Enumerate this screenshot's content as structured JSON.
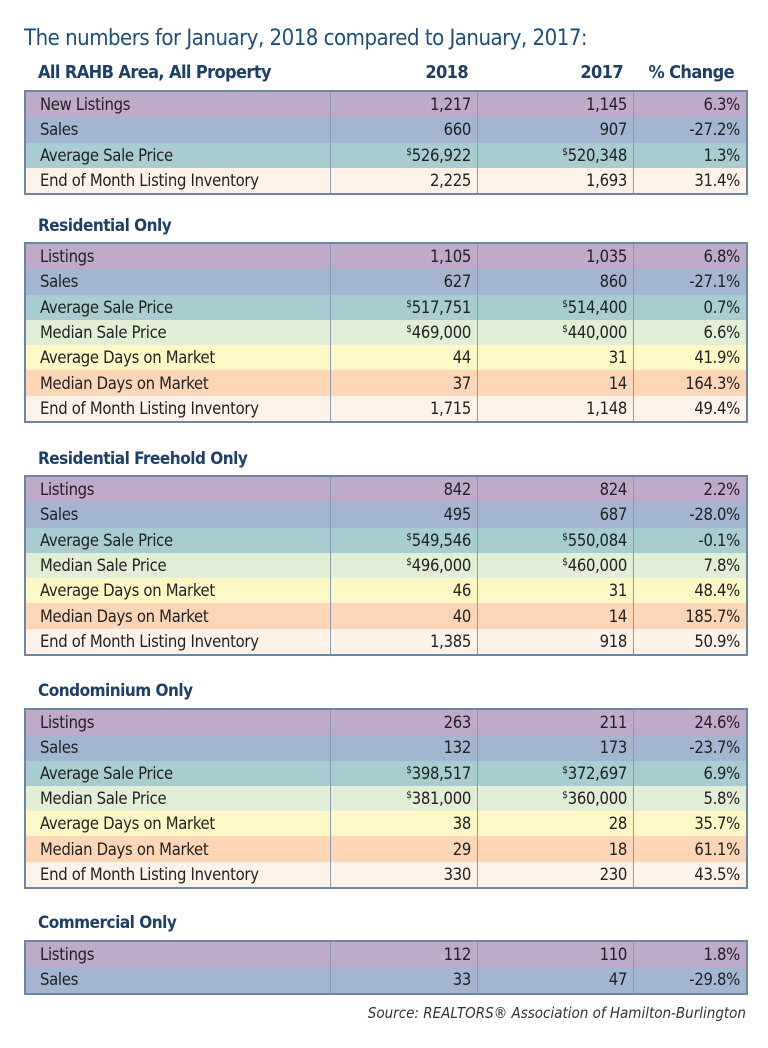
{
  "title": "The numbers for January, 2018 compared to January, 2017:",
  "header": {
    "area": "All RAHB Area, All Property",
    "col1": "2018",
    "col2": "2017",
    "col3": "% Change"
  },
  "sections": [
    {
      "name": "",
      "rows": [
        [
          "New Listings",
          "1,217",
          "1,145",
          "6.3%"
        ],
        [
          "Sales",
          "660",
          "907",
          "-27.2%"
        ],
        [
          "Average Sale Price",
          "526,922",
          "520,348",
          "1.3%"
        ],
        [
          "End of Month Listing Inventory",
          "2,225",
          "1,693",
          "31.4%"
        ]
      ]
    },
    {
      "name": "Residential Only",
      "rows": [
        [
          "Listings",
          "1,105",
          "1,035",
          "6.8%"
        ],
        [
          "Sales",
          "627",
          "860",
          "-27.1%"
        ],
        [
          "Average Sale Price",
          "517,751",
          "514,400",
          "0.7%"
        ],
        [
          "Median Sale Price",
          "469,000",
          "440,000",
          "6.6%"
        ],
        [
          "Average Days on Market",
          "44",
          "31",
          "41.9%"
        ],
        [
          "Median Days on Market",
          "37",
          "14",
          "164.3%"
        ],
        [
          "End of Month Listing Inventory",
          "1,715",
          "1,148",
          "49.4%"
        ]
      ]
    },
    {
      "name": "Residential Freehold Only",
      "rows": [
        [
          "Listings",
          "842",
          "824",
          "2.2%"
        ],
        [
          "Sales",
          "495",
          "687",
          "-28.0%"
        ],
        [
          "Average Sale Price",
          "549,546",
          "550,084",
          "-0.1%"
        ],
        [
          "Median Sale Price",
          "496,000",
          "460,000",
          "7.8%"
        ],
        [
          "Average Days on Market",
          "46",
          "31",
          "48.4%"
        ],
        [
          "Median Days on Market",
          "40",
          "14",
          "185.7%"
        ],
        [
          "End of Month Listing Inventory",
          "1,385",
          "918",
          "50.9%"
        ]
      ]
    },
    {
      "name": "Condominium Only",
      "rows": [
        [
          "Listings",
          "263",
          "211",
          "24.6%"
        ],
        [
          "Sales",
          "132",
          "173",
          "-23.7%"
        ],
        [
          "Average Sale Price",
          "398,517",
          "372,697",
          "6.9%"
        ],
        [
          "Median Sale Price",
          "381,000",
          "360,000",
          "5.8%"
        ],
        [
          "Average Days on Market",
          "38",
          "28",
          "35.7%"
        ],
        [
          "Median Days on Market",
          "29",
          "18",
          "61.1%"
        ],
        [
          "End of Month Listing Inventory",
          "330",
          "230",
          "43.5%"
        ]
      ]
    },
    {
      "name": "Commercial Only",
      "rows": [
        [
          "Listings",
          "112",
          "110",
          "1.8%"
        ],
        [
          "Sales",
          "33",
          "47",
          "-29.8%"
        ]
      ]
    }
  ],
  "currency_symbol": "$",
  "source": "Source:  REALTORS® Association of Hamilton-Burlington",
  "row_colors": {
    "Listings": "#bfaac7",
    "Sales": "#a3b5cf",
    "Average Sale Price": "#a8cccf",
    "Median Sale Price": "#e2eed6",
    "Average Days on Market": "#fdf8c6",
    "Median Days on Market": "#fdd6b8",
    "End of Month Listing Inventory": "#fef2e9"
  }
}
